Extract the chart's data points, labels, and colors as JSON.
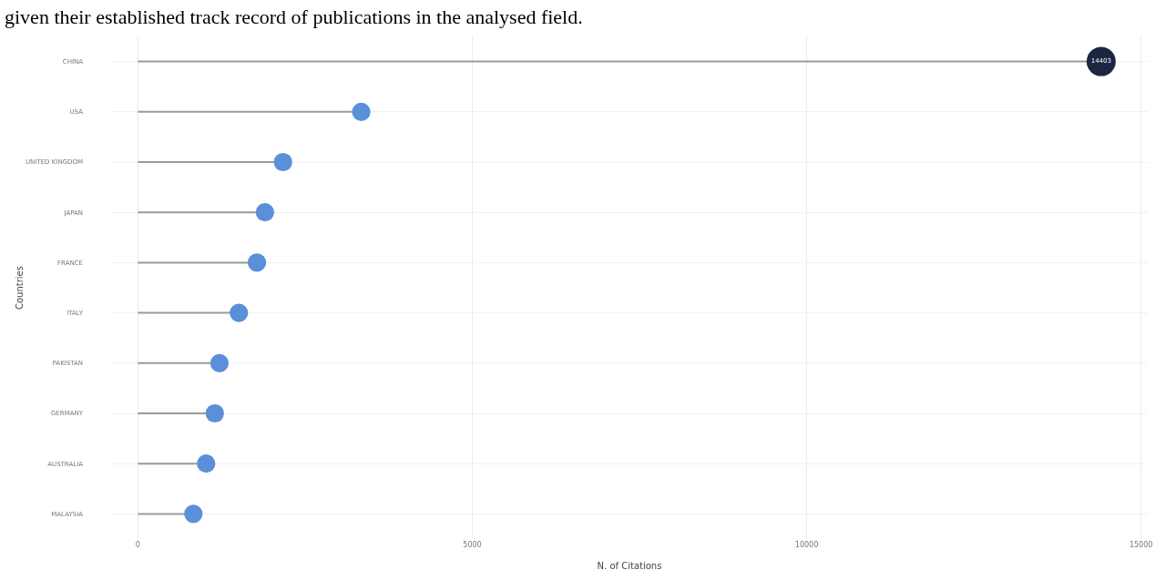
{
  "chart_data": {
    "type": "lollipop",
    "orientation": "horizontal",
    "annotations": [
      "given their established track record of publications in the analysed field."
    ],
    "xlabel": "N. of Citations",
    "ylabel": "Countries",
    "categories": [
      "CHINA",
      "USA",
      "UNITED KINGDOM",
      "JAPAN",
      "FRANCE",
      "ITALY",
      "PAKISTAN",
      "GERMANY",
      "AUSTRALIA",
      "MALAYSIA"
    ],
    "values": [
      14403,
      3340,
      2170,
      1900,
      1780,
      1510,
      1220,
      1150,
      1020,
      830
    ],
    "value_labels": [
      "14403",
      null,
      null,
      null,
      null,
      null,
      null,
      null,
      null,
      null
    ],
    "colors": [
      "#1c2640",
      "#5b8fd9",
      "#5b8fd9",
      "#5b8fd9",
      "#5b8fd9",
      "#5b8fd9",
      "#5b8fd9",
      "#5b8fd9",
      "#5b8fd9",
      "#5b8fd9"
    ],
    "sizes": [
      1,
      0.4,
      0.4,
      0.4,
      0.4,
      0.4,
      0.4,
      0.4,
      0.4,
      0.4
    ],
    "xlim": [
      -400,
      15100
    ],
    "xticks": [
      0,
      5000,
      10000,
      15000
    ],
    "grid": true
  }
}
